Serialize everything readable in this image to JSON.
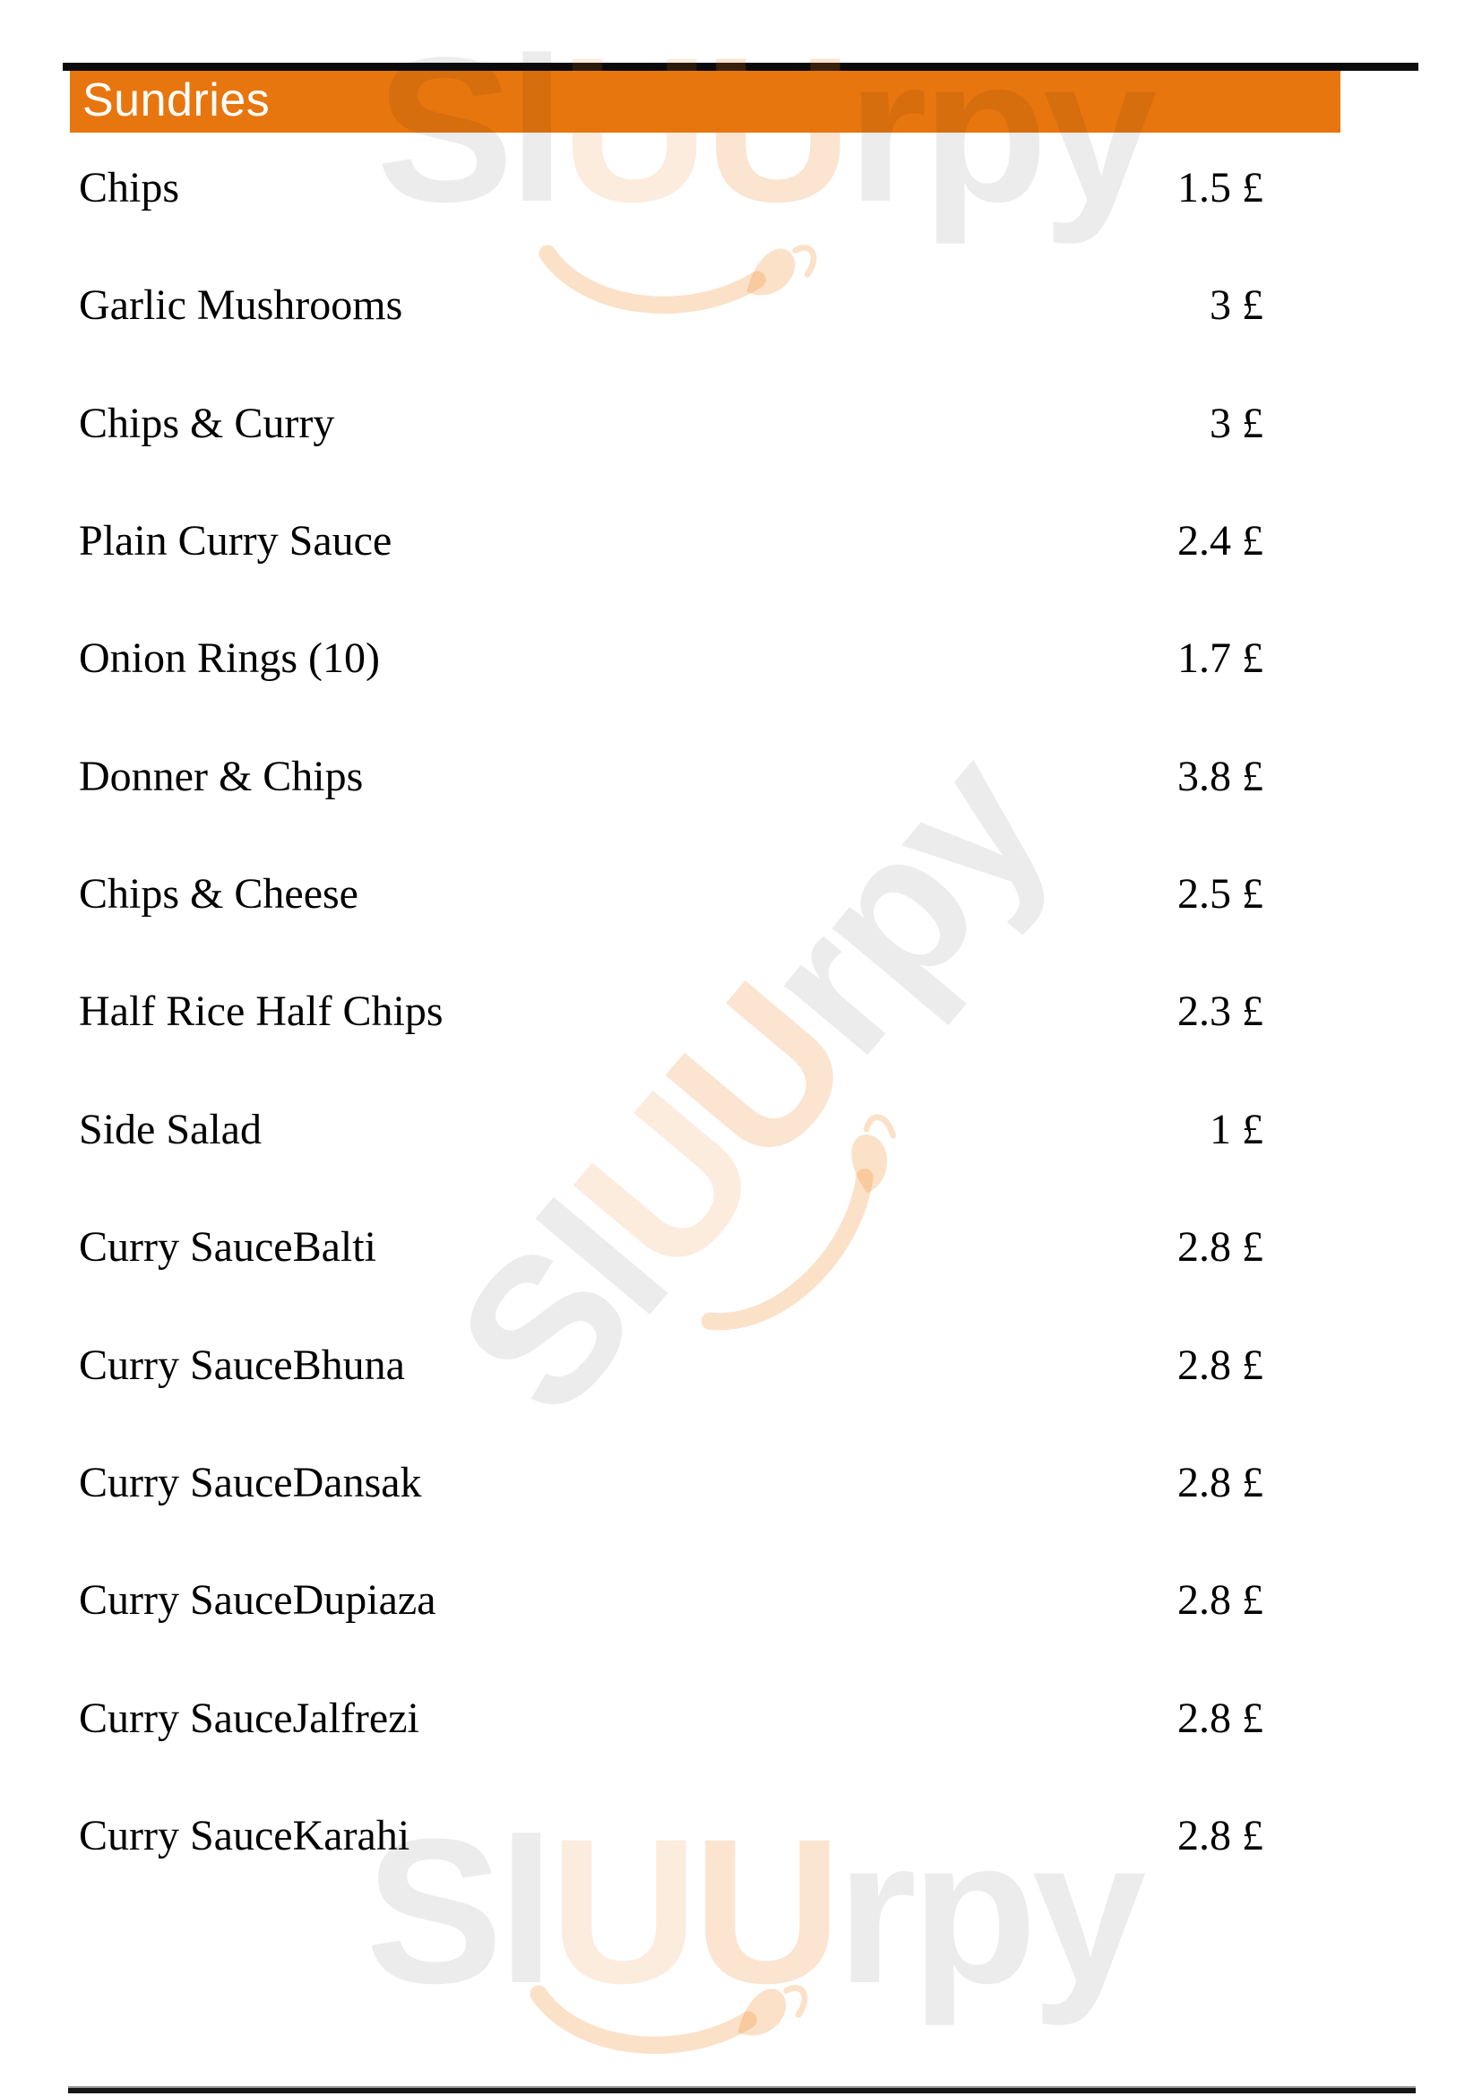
{
  "header": {
    "title": "Sundries",
    "bar_color": "#E8760E"
  },
  "menu": {
    "currency": "£",
    "items": [
      {
        "name": "Chips",
        "price": "1.5 £"
      },
      {
        "name": "Garlic Mushrooms",
        "price": "3 £"
      },
      {
        "name": "Chips & Curry",
        "price": "3 £"
      },
      {
        "name": "Plain Curry Sauce",
        "price": "2.4 £"
      },
      {
        "name": "Onion Rings (10)",
        "price": "1.7 £"
      },
      {
        "name": "Donner & Chips",
        "price": "3.8 £"
      },
      {
        "name": "Chips & Cheese",
        "price": "2.5 £"
      },
      {
        "name": "Half Rice Half Chips",
        "price": "2.3 £"
      },
      {
        "name": "Side Salad",
        "price": "1 £"
      },
      {
        "name": "Curry SauceBalti",
        "price": "2.8 £"
      },
      {
        "name": "Curry SauceBhuna",
        "price": "2.8 £"
      },
      {
        "name": "Curry SauceDansak",
        "price": "2.8 £"
      },
      {
        "name": "Curry SauceDupiaza",
        "price": "2.8 £"
      },
      {
        "name": "Curry SauceJalfrezi",
        "price": "2.8 £"
      },
      {
        "name": "Curry SauceKarahi",
        "price": "2.8 £"
      }
    ]
  },
  "watermark": {
    "sl": "Sl",
    "u1": "U",
    "u2": "U",
    "rpy": "rpy",
    "gray_color": "#EDEDED",
    "peach_color": "#FCE9D9",
    "swoosh_color": "#F8E0C6"
  }
}
